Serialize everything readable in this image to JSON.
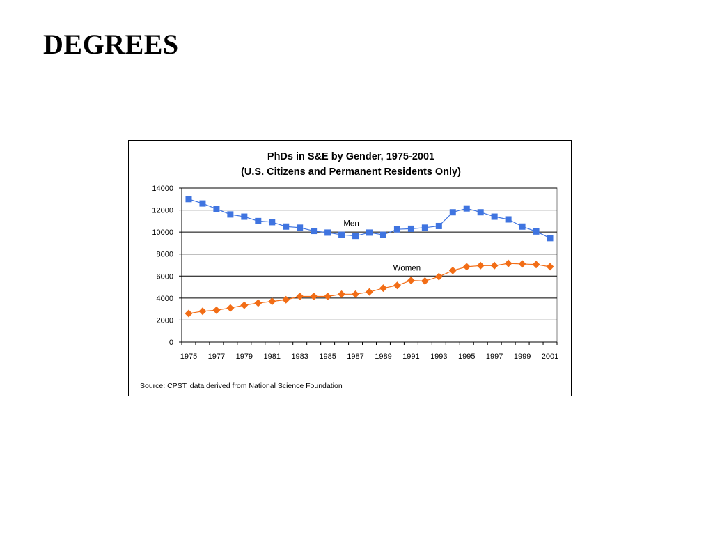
{
  "page": {
    "heading": "DEGREES"
  },
  "colors": {
    "men": "#3f74e0",
    "women": "#f26d16",
    "grid": "#000000"
  },
  "chart_data": {
    "type": "line",
    "title": "PhDs in S&E by Gender, 1975-2001",
    "subtitle": "(U.S. Citizens and Permanent Residents Only)",
    "xlabel": "",
    "ylabel": "",
    "ylim": [
      0,
      14000
    ],
    "yticks": [
      0,
      2000,
      4000,
      6000,
      8000,
      10000,
      12000,
      14000
    ],
    "x": [
      1975,
      1976,
      1977,
      1978,
      1979,
      1980,
      1981,
      1982,
      1983,
      1984,
      1985,
      1986,
      1987,
      1988,
      1989,
      1990,
      1991,
      1992,
      1993,
      1994,
      1995,
      1996,
      1997,
      1998,
      1999,
      2000,
      2001
    ],
    "xtick_labels": [
      "1975",
      "1977",
      "1979",
      "1981",
      "1983",
      "1985",
      "1987",
      "1989",
      "1991",
      "1993",
      "1995",
      "1997",
      "1999",
      "2001"
    ],
    "grid": true,
    "legend": "none",
    "series": [
      {
        "name": "Men",
        "marker": "square",
        "values": [
          13000,
          12600,
          12100,
          11600,
          11400,
          11000,
          10900,
          10500,
          10400,
          10100,
          9950,
          9750,
          9650,
          9950,
          9750,
          10250,
          10300,
          10400,
          10550,
          11800,
          12150,
          11800,
          11400,
          11150,
          10500,
          10050,
          9450
        ]
      },
      {
        "name": "Women",
        "marker": "diamond",
        "values": [
          2600,
          2800,
          2900,
          3100,
          3350,
          3550,
          3700,
          3850,
          4150,
          4150,
          4150,
          4350,
          4350,
          4550,
          4900,
          5150,
          5600,
          5550,
          5950,
          6500,
          6850,
          6950,
          6950,
          7150,
          7100,
          7050,
          6850
        ]
      }
    ],
    "annotations": [
      {
        "text": "Men",
        "series": "Men",
        "x": 1987
      },
      {
        "text": "Women",
        "series": "Women",
        "x": 1991
      }
    ],
    "source": "Source:  CPST, data derived from National Science Foundation"
  }
}
